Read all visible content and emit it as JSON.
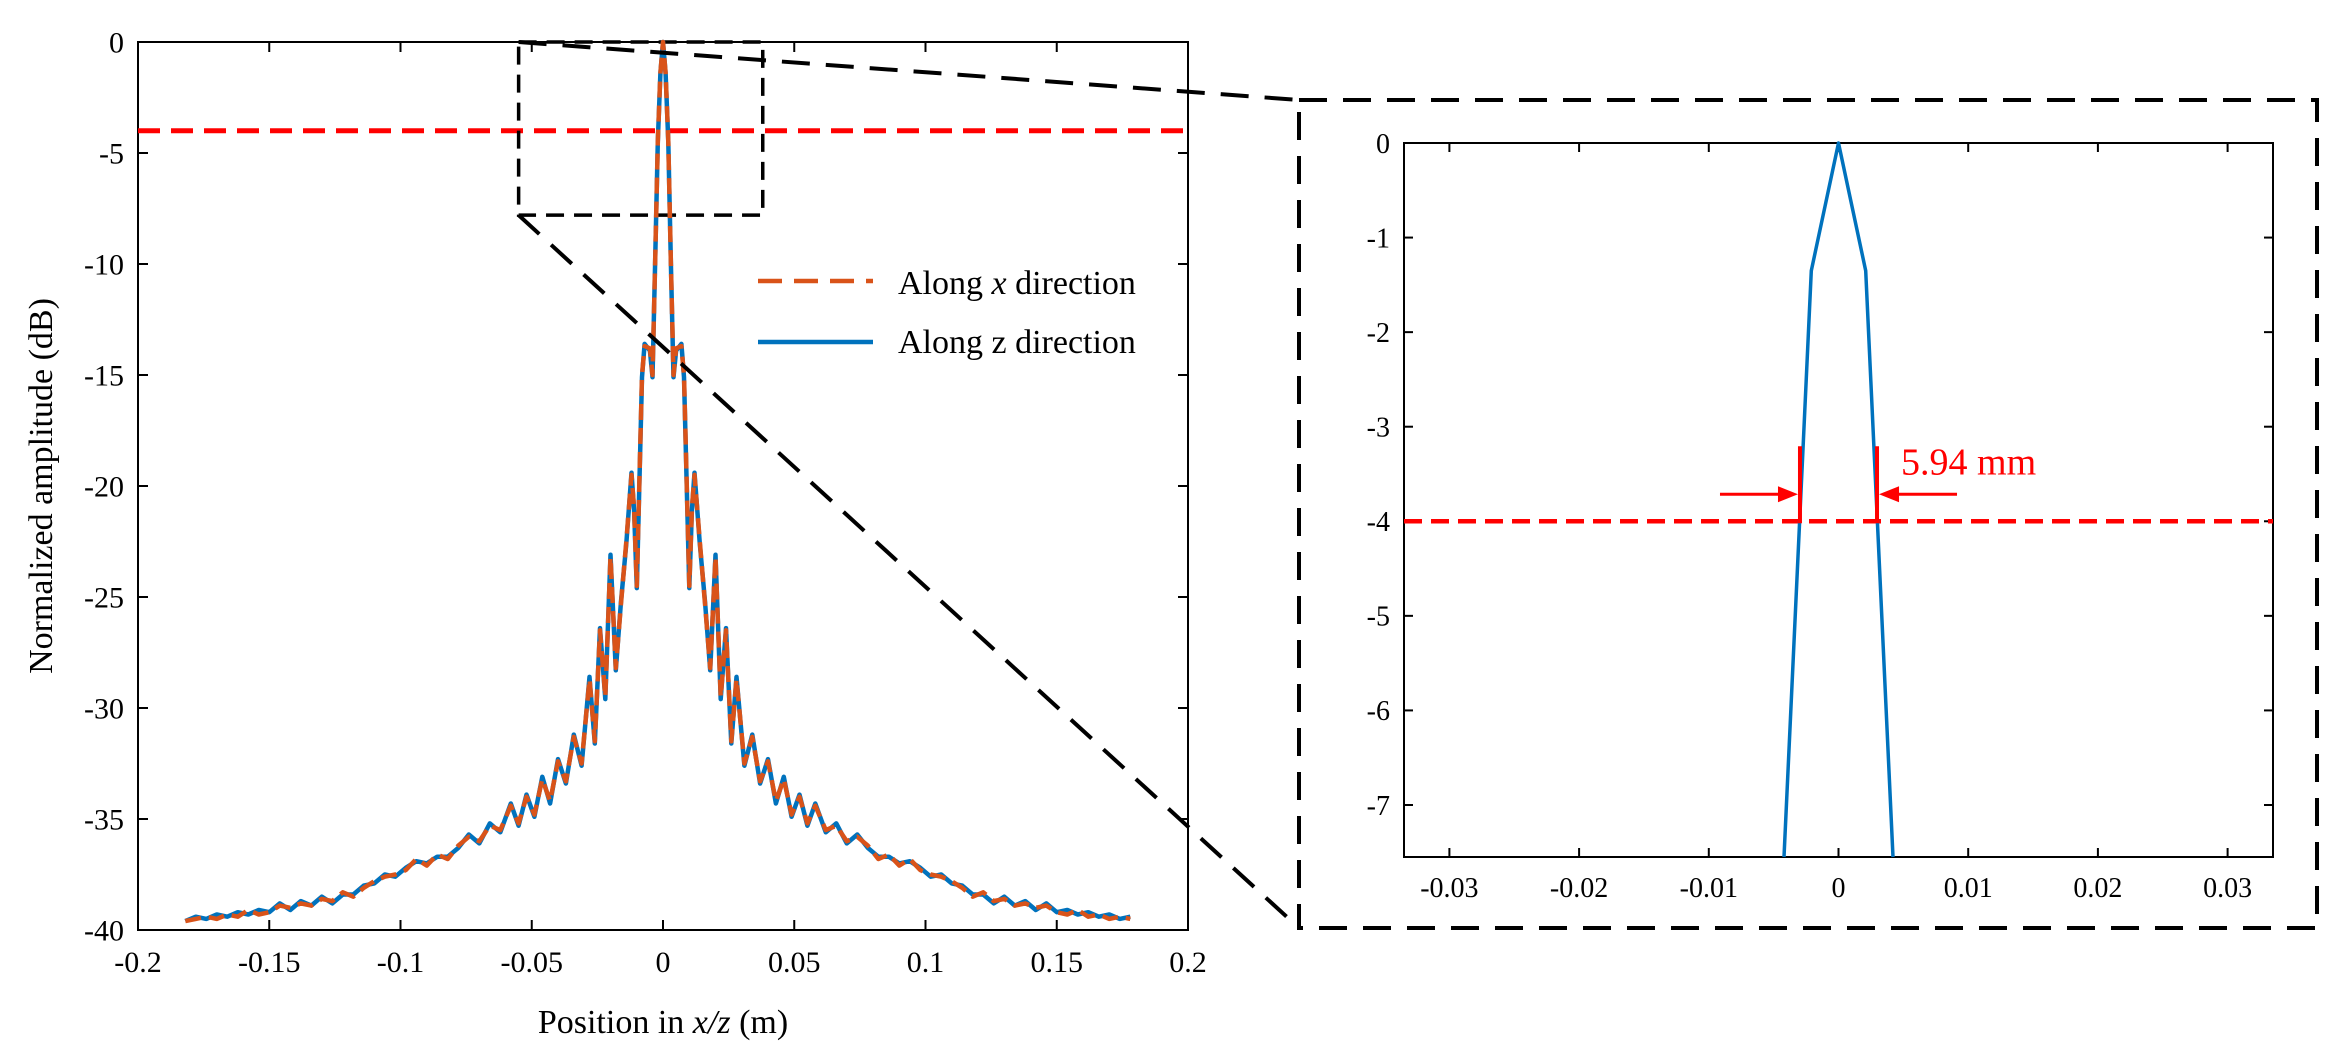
{
  "colors": {
    "x_series": "#D95319",
    "z_series": "#0072BD",
    "threshold": "#FF0000",
    "zoom_box": "#000000"
  },
  "chart_data": [
    {
      "id": "main",
      "type": "line",
      "xlabel_prefix": "Position in ",
      "xlabel_var": "x/z",
      "xlabel_suffix": " (m)",
      "ylabel": "Normalized amplitude (dB)",
      "xlim": [
        -0.2,
        0.2
      ],
      "ylim": [
        -40,
        0
      ],
      "xticks": [
        -0.2,
        -0.15,
        -0.1,
        -0.05,
        0,
        0.05,
        0.1,
        0.15,
        0.2
      ],
      "xtick_labels": [
        "-0.2",
        "-0.15",
        "-0.1",
        "-0.05",
        "0",
        "0.05",
        "0.1",
        "0.15",
        "0.2"
      ],
      "yticks": [
        0,
        -5,
        -10,
        -15,
        -20,
        -25,
        -30,
        -35,
        -40
      ],
      "ytick_labels": [
        "0",
        "-5",
        "-10",
        "-15",
        "-20",
        "-25",
        "-30",
        "-35",
        "-40"
      ],
      "threshold_db": -4,
      "zoom_region": {
        "x": [
          -0.055,
          0.038
        ],
        "y": [
          -7.8,
          0
        ]
      },
      "legend": {
        "position": "upper-right",
        "entries": [
          {
            "series": "x",
            "prefix": "Along ",
            "var": "x",
            "suffix": " direction"
          },
          {
            "series": "z",
            "prefix": "Along ",
            "var": "z",
            "suffix": " direction"
          }
        ]
      },
      "series": [
        {
          "name": "Along x direction",
          "style": "dashed",
          "points": [
            [
              -0.182,
              -39.6
            ],
            [
              -0.178,
              -39.5
            ],
            [
              -0.174,
              -39.4
            ],
            [
              -0.17,
              -39.5
            ],
            [
              -0.166,
              -39.3
            ],
            [
              -0.162,
              -39.4
            ],
            [
              -0.158,
              -39.1
            ],
            [
              -0.154,
              -39.3
            ],
            [
              -0.15,
              -39.2
            ],
            [
              -0.146,
              -38.9
            ],
            [
              -0.142,
              -39.0
            ],
            [
              -0.138,
              -38.8
            ],
            [
              -0.134,
              -38.9
            ],
            [
              -0.13,
              -38.6
            ],
            [
              -0.126,
              -38.7
            ],
            [
              -0.122,
              -38.3
            ],
            [
              -0.118,
              -38.5
            ],
            [
              -0.114,
              -38.1
            ],
            [
              -0.11,
              -37.8
            ],
            [
              -0.106,
              -37.6
            ],
            [
              -0.102,
              -37.5
            ],
            [
              -0.098,
              -37.3
            ],
            [
              -0.094,
              -36.8
            ],
            [
              -0.09,
              -37.1
            ],
            [
              -0.086,
              -36.6
            ],
            [
              -0.082,
              -36.8
            ],
            [
              -0.078,
              -36.2
            ],
            [
              -0.074,
              -35.8
            ],
            [
              -0.07,
              -36.0
            ],
            [
              -0.066,
              -35.3
            ],
            [
              -0.062,
              -35.5
            ],
            [
              -0.058,
              -34.4
            ],
            [
              -0.055,
              -35.2
            ],
            [
              -0.052,
              -34.0
            ],
            [
              -0.049,
              -34.8
            ],
            [
              -0.046,
              -33.2
            ],
            [
              -0.043,
              -34.2
            ],
            [
              -0.04,
              -32.4
            ],
            [
              -0.037,
              -33.3
            ],
            [
              -0.034,
              -31.3
            ],
            [
              -0.031,
              -32.5
            ],
            [
              -0.028,
              -28.7
            ],
            [
              -0.026,
              -31.5
            ],
            [
              -0.024,
              -26.5
            ],
            [
              -0.022,
              -29.5
            ],
            [
              -0.02,
              -23.2
            ],
            [
              -0.018,
              -28.2
            ],
            [
              -0.016,
              -25.3
            ],
            [
              -0.014,
              -22.5
            ],
            [
              -0.012,
              -19.5
            ],
            [
              -0.011,
              -21.0
            ],
            [
              -0.01,
              -24.5
            ],
            [
              -0.008,
              -15.0
            ],
            [
              -0.007,
              -13.7
            ],
            [
              -0.005,
              -13.8
            ],
            [
              -0.004,
              -15.0
            ],
            [
              -0.003,
              -10.0
            ],
            [
              -0.002,
              -4.5
            ],
            [
              -0.001,
              -1.4
            ],
            [
              0,
              0
            ],
            [
              0.001,
              -1.4
            ],
            [
              0.002,
              -4.5
            ],
            [
              0.003,
              -10.0
            ],
            [
              0.004,
              -15.0
            ],
            [
              0.005,
              -13.8
            ],
            [
              0.007,
              -13.7
            ],
            [
              0.008,
              -15.0
            ],
            [
              0.01,
              -24.5
            ],
            [
              0.011,
              -21.0
            ],
            [
              0.012,
              -19.5
            ],
            [
              0.014,
              -22.5
            ],
            [
              0.016,
              -25.3
            ],
            [
              0.018,
              -28.2
            ],
            [
              0.02,
              -23.2
            ],
            [
              0.022,
              -29.5
            ],
            [
              0.024,
              -26.5
            ],
            [
              0.026,
              -31.5
            ],
            [
              0.028,
              -28.7
            ],
            [
              0.031,
              -32.5
            ],
            [
              0.034,
              -31.3
            ],
            [
              0.037,
              -33.3
            ],
            [
              0.04,
              -32.4
            ],
            [
              0.043,
              -34.2
            ],
            [
              0.046,
              -33.2
            ],
            [
              0.049,
              -34.8
            ],
            [
              0.052,
              -34.0
            ],
            [
              0.055,
              -35.2
            ],
            [
              0.058,
              -34.4
            ],
            [
              0.062,
              -35.5
            ],
            [
              0.066,
              -35.3
            ],
            [
              0.07,
              -36.0
            ],
            [
              0.074,
              -35.8
            ],
            [
              0.078,
              -36.2
            ],
            [
              0.082,
              -36.8
            ],
            [
              0.086,
              -36.6
            ],
            [
              0.09,
              -37.1
            ],
            [
              0.094,
              -36.8
            ],
            [
              0.098,
              -37.3
            ],
            [
              0.102,
              -37.5
            ],
            [
              0.106,
              -37.6
            ],
            [
              0.11,
              -37.8
            ],
            [
              0.114,
              -38.1
            ],
            [
              0.118,
              -38.5
            ],
            [
              0.122,
              -38.3
            ],
            [
              0.126,
              -38.7
            ],
            [
              0.13,
              -38.6
            ],
            [
              0.134,
              -38.9
            ],
            [
              0.138,
              -38.8
            ],
            [
              0.142,
              -39.0
            ],
            [
              0.146,
              -38.9
            ],
            [
              0.15,
              -39.2
            ],
            [
              0.154,
              -39.3
            ],
            [
              0.158,
              -39.1
            ],
            [
              0.162,
              -39.4
            ],
            [
              0.166,
              -39.3
            ],
            [
              0.17,
              -39.5
            ],
            [
              0.174,
              -39.4
            ],
            [
              0.178,
              -39.5
            ]
          ]
        },
        {
          "name": "Along z direction",
          "style": "solid",
          "points": [
            [
              -0.182,
              -39.6
            ],
            [
              -0.178,
              -39.4
            ],
            [
              -0.174,
              -39.5
            ],
            [
              -0.17,
              -39.3
            ],
            [
              -0.166,
              -39.4
            ],
            [
              -0.162,
              -39.2
            ],
            [
              -0.158,
              -39.3
            ],
            [
              -0.154,
              -39.1
            ],
            [
              -0.15,
              -39.2
            ],
            [
              -0.146,
              -38.8
            ],
            [
              -0.142,
              -39.1
            ],
            [
              -0.138,
              -38.7
            ],
            [
              -0.134,
              -38.9
            ],
            [
              -0.13,
              -38.5
            ],
            [
              -0.126,
              -38.8
            ],
            [
              -0.122,
              -38.4
            ],
            [
              -0.118,
              -38.4
            ],
            [
              -0.114,
              -38.0
            ],
            [
              -0.11,
              -37.9
            ],
            [
              -0.106,
              -37.5
            ],
            [
              -0.102,
              -37.6
            ],
            [
              -0.098,
              -37.2
            ],
            [
              -0.094,
              -36.9
            ],
            [
              -0.09,
              -37.0
            ],
            [
              -0.086,
              -36.7
            ],
            [
              -0.082,
              -36.7
            ],
            [
              -0.078,
              -36.3
            ],
            [
              -0.074,
              -35.7
            ],
            [
              -0.07,
              -36.1
            ],
            [
              -0.066,
              -35.2
            ],
            [
              -0.062,
              -35.6
            ],
            [
              -0.058,
              -34.3
            ],
            [
              -0.055,
              -35.3
            ],
            [
              -0.052,
              -33.9
            ],
            [
              -0.049,
              -34.9
            ],
            [
              -0.046,
              -33.1
            ],
            [
              -0.043,
              -34.3
            ],
            [
              -0.04,
              -32.3
            ],
            [
              -0.037,
              -33.4
            ],
            [
              -0.034,
              -31.2
            ],
            [
              -0.031,
              -32.6
            ],
            [
              -0.028,
              -28.6
            ],
            [
              -0.026,
              -31.6
            ],
            [
              -0.024,
              -26.4
            ],
            [
              -0.022,
              -29.6
            ],
            [
              -0.02,
              -23.1
            ],
            [
              -0.018,
              -28.3
            ],
            [
              -0.016,
              -25.2
            ],
            [
              -0.014,
              -22.6
            ],
            [
              -0.012,
              -19.4
            ],
            [
              -0.011,
              -21.1
            ],
            [
              -0.01,
              -24.6
            ],
            [
              -0.008,
              -15.1
            ],
            [
              -0.007,
              -13.6
            ],
            [
              -0.005,
              -13.9
            ],
            [
              -0.004,
              -15.1
            ],
            [
              -0.003,
              -10.0
            ],
            [
              -0.002,
              -4.5
            ],
            [
              -0.001,
              -1.4
            ],
            [
              0,
              0
            ],
            [
              0.001,
              -1.4
            ],
            [
              0.002,
              -4.5
            ],
            [
              0.003,
              -10.0
            ],
            [
              0.004,
              -15.1
            ],
            [
              0.005,
              -13.9
            ],
            [
              0.007,
              -13.6
            ],
            [
              0.008,
              -15.1
            ],
            [
              0.01,
              -24.6
            ],
            [
              0.011,
              -21.1
            ],
            [
              0.012,
              -19.4
            ],
            [
              0.014,
              -22.6
            ],
            [
              0.016,
              -25.2
            ],
            [
              0.018,
              -28.3
            ],
            [
              0.02,
              -23.1
            ],
            [
              0.022,
              -29.6
            ],
            [
              0.024,
              -26.4
            ],
            [
              0.026,
              -31.6
            ],
            [
              0.028,
              -28.6
            ],
            [
              0.031,
              -32.6
            ],
            [
              0.034,
              -31.2
            ],
            [
              0.037,
              -33.4
            ],
            [
              0.04,
              -32.3
            ],
            [
              0.043,
              -34.3
            ],
            [
              0.046,
              -33.1
            ],
            [
              0.049,
              -34.9
            ],
            [
              0.052,
              -33.9
            ],
            [
              0.055,
              -35.3
            ],
            [
              0.058,
              -34.3
            ],
            [
              0.062,
              -35.6
            ],
            [
              0.066,
              -35.2
            ],
            [
              0.07,
              -36.1
            ],
            [
              0.074,
              -35.7
            ],
            [
              0.078,
              -36.3
            ],
            [
              0.082,
              -36.7
            ],
            [
              0.086,
              -36.7
            ],
            [
              0.09,
              -37.0
            ],
            [
              0.094,
              -36.9
            ],
            [
              0.098,
              -37.2
            ],
            [
              0.102,
              -37.6
            ],
            [
              0.106,
              -37.5
            ],
            [
              0.11,
              -37.9
            ],
            [
              0.114,
              -38.0
            ],
            [
              0.118,
              -38.4
            ],
            [
              0.122,
              -38.4
            ],
            [
              0.126,
              -38.8
            ],
            [
              0.13,
              -38.5
            ],
            [
              0.134,
              -38.9
            ],
            [
              0.138,
              -38.7
            ],
            [
              0.142,
              -39.1
            ],
            [
              0.146,
              -38.8
            ],
            [
              0.15,
              -39.2
            ],
            [
              0.154,
              -39.1
            ],
            [
              0.158,
              -39.3
            ],
            [
              0.162,
              -39.2
            ],
            [
              0.166,
              -39.4
            ],
            [
              0.17,
              -39.3
            ],
            [
              0.174,
              -39.5
            ],
            [
              0.178,
              -39.4
            ]
          ]
        }
      ]
    },
    {
      "id": "inset",
      "type": "line",
      "xlim": [
        -0.0335,
        0.0335
      ],
      "ylim": [
        -7.55,
        0
      ],
      "xticks": [
        -0.03,
        -0.02,
        -0.01,
        0,
        0.01,
        0.02,
        0.03
      ],
      "xtick_labels": [
        "-0.03",
        "-0.02",
        "-0.01",
        "0",
        "0.01",
        "0.02",
        "0.03"
      ],
      "yticks": [
        0,
        -1,
        -2,
        -3,
        -4,
        -5,
        -6,
        -7
      ],
      "ytick_labels": [
        "0",
        "-1",
        "-2",
        "-3",
        "-4",
        "-5",
        "-6",
        "-7"
      ],
      "threshold_db": -4,
      "beam_width_label": "5.94 mm",
      "beam_width_edges": [
        -0.00297,
        0.00297
      ],
      "series": [
        {
          "name": "Along z direction",
          "style": "solid",
          "points": [
            [
              -0.0042,
              -7.55
            ],
            [
              -0.0021,
              -1.35
            ],
            [
              0,
              0
            ],
            [
              0.0021,
              -1.35
            ],
            [
              0.0042,
              -7.55
            ]
          ]
        }
      ]
    }
  ]
}
